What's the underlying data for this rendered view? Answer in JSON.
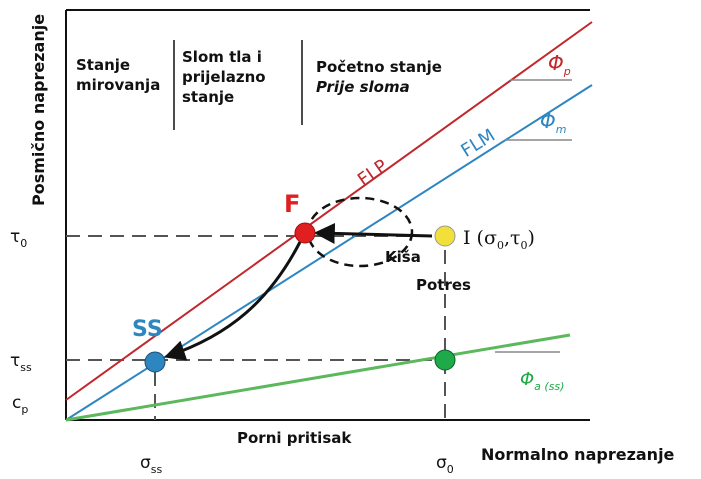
{
  "regions": [
    {
      "lines": [
        "Stanje",
        "mirovanja"
      ]
    },
    {
      "lines": [
        "Slom tla i",
        "prijelazno",
        "stanje"
      ]
    },
    {
      "lines": [
        "Početno stanje",
        "Prije sloma"
      ]
    }
  ],
  "axes": {
    "y_label": "Posmično naprezanje",
    "x_label": "Normalno naprezanje",
    "pore_label": "Porni pritisak",
    "tau0": {
      "symbol": "τ",
      "sub": "0"
    },
    "tauss": {
      "symbol": "τ",
      "sub": "ss"
    },
    "cp": {
      "symbol": "c",
      "sub": "p"
    },
    "sigmass": {
      "symbol": "σ",
      "sub": "ss"
    },
    "sigma0": {
      "symbol": "σ",
      "sub": "0"
    }
  },
  "envelopes": {
    "flp": "FLP",
    "flm": "FLM",
    "phi_p": {
      "symbol": "Φ",
      "sub": "p"
    },
    "phi_m": {
      "symbol": "Φ",
      "sub": "m"
    },
    "phi_a": {
      "symbol": "Φ",
      "sub": "a (ss)"
    }
  },
  "points": {
    "F": "F",
    "SS": "SS",
    "I": [
      "I (σ",
      "0",
      ",τ",
      "0",
      ")"
    ],
    "rain": "Kiša",
    "quake": "Potres"
  }
}
